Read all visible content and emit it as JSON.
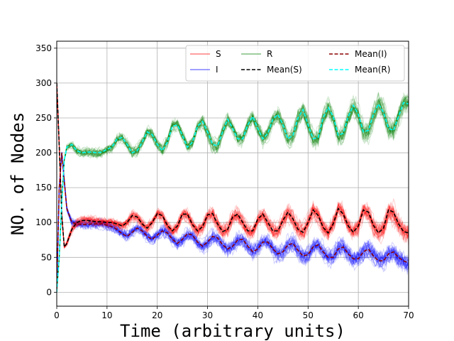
{
  "chart_data": {
    "type": "line",
    "title": "",
    "xlabel": "Time (arbitrary units)",
    "ylabel": "NO. of Nodes",
    "xlim": [
      0,
      70
    ],
    "ylim": [
      -20,
      360
    ],
    "xticks": [
      0,
      10,
      20,
      30,
      40,
      50,
      60,
      70
    ],
    "yticks": [
      0,
      50,
      100,
      150,
      200,
      250,
      300,
      350
    ],
    "grid": true,
    "legend_position": "top-right",
    "legend": [
      "S",
      "I",
      "R",
      "Mean(S)",
      "Mean(I)",
      "Mean(R)"
    ],
    "colors": {
      "S": "#ff0000",
      "I": "#0000ff",
      "R": "#008000",
      "Mean(S)": "#000000",
      "Mean(I)": "#8b0000",
      "Mean(R)": "#00ffff"
    },
    "series": [
      {
        "name": "Mean(S)",
        "style": "dashed",
        "x": [
          0,
          0.5,
          1,
          1.5,
          2,
          3,
          4,
          5,
          6,
          7,
          8,
          9,
          10,
          11,
          12,
          13,
          14,
          15,
          16,
          17,
          18,
          19,
          20,
          21,
          22,
          23,
          24,
          25,
          26,
          27,
          28,
          29,
          30,
          31,
          32,
          33,
          34,
          35,
          36,
          37,
          38,
          39,
          40,
          41,
          42,
          43,
          44,
          45,
          46,
          47,
          48,
          49,
          50,
          51,
          52,
          53,
          54,
          55,
          56,
          57,
          58,
          59,
          60,
          61,
          62,
          63,
          64,
          65,
          66,
          67,
          68,
          69,
          70
        ],
        "values": [
          300,
          210,
          110,
          65,
          70,
          90,
          100,
          103,
          103,
          102,
          101,
          101,
          100,
          100,
          98,
          95,
          100,
          110,
          108,
          98,
          92,
          100,
          113,
          110,
          96,
          88,
          95,
          112,
          112,
          97,
          88,
          94,
          111,
          113,
          98,
          87,
          90,
          108,
          112,
          100,
          88,
          88,
          105,
          112,
          100,
          88,
          88,
          103,
          115,
          105,
          90,
          86,
          100,
          118,
          110,
          93,
          85,
          98,
          120,
          112,
          95,
          86,
          95,
          118,
          115,
          96,
          85,
          92,
          118,
          115,
          98,
          87,
          85
        ]
      },
      {
        "name": "Mean(I)",
        "style": "dashed",
        "x": [
          0,
          0.5,
          1,
          1.5,
          2,
          3,
          4,
          5,
          6,
          7,
          8,
          9,
          10,
          11,
          12,
          13,
          14,
          15,
          16,
          17,
          18,
          19,
          20,
          21,
          22,
          23,
          24,
          25,
          26,
          27,
          28,
          29,
          30,
          31,
          32,
          33,
          34,
          35,
          36,
          37,
          38,
          39,
          40,
          41,
          42,
          43,
          44,
          45,
          46,
          47,
          48,
          49,
          50,
          51,
          52,
          53,
          54,
          55,
          56,
          57,
          58,
          59,
          60,
          61,
          62,
          63,
          64,
          65,
          66,
          67,
          68,
          69,
          70
        ],
        "values": [
          5,
          150,
          200,
          160,
          120,
          100,
          98,
          97,
          97,
          98,
          98,
          98,
          96,
          94,
          90,
          84,
          80,
          86,
          92,
          88,
          80,
          76,
          82,
          88,
          85,
          76,
          70,
          76,
          84,
          82,
          72,
          66,
          72,
          80,
          78,
          68,
          62,
          66,
          75,
          76,
          66,
          58,
          62,
          72,
          72,
          62,
          55,
          58,
          68,
          70,
          60,
          52,
          54,
          65,
          68,
          58,
          50,
          50,
          62,
          65,
          55,
          48,
          48,
          58,
          62,
          52,
          45,
          45,
          55,
          58,
          50,
          45,
          42
        ]
      },
      {
        "name": "Mean(R)",
        "style": "dashed",
        "x": [
          0,
          0.5,
          1,
          1.5,
          2,
          3,
          4,
          5,
          6,
          7,
          8,
          9,
          10,
          11,
          12,
          13,
          14,
          15,
          16,
          17,
          18,
          19,
          20,
          21,
          22,
          23,
          24,
          25,
          26,
          27,
          28,
          29,
          30,
          31,
          32,
          33,
          34,
          35,
          36,
          37,
          38,
          39,
          40,
          41,
          42,
          43,
          44,
          45,
          46,
          47,
          48,
          49,
          50,
          51,
          52,
          53,
          54,
          55,
          56,
          57,
          58,
          59,
          60,
          61,
          62,
          63,
          64,
          65,
          66,
          67,
          68,
          69,
          70
        ],
        "values": [
          0,
          50,
          130,
          190,
          208,
          212,
          203,
          200,
          201,
          201,
          200,
          201,
          205,
          208,
          220,
          222,
          212,
          200,
          203,
          215,
          230,
          226,
          212,
          203,
          215,
          238,
          240,
          225,
          208,
          215,
          238,
          245,
          230,
          212,
          210,
          230,
          248,
          235,
          220,
          220,
          240,
          252,
          235,
          220,
          228,
          248,
          255,
          240,
          220,
          225,
          250,
          262,
          240,
          220,
          222,
          250,
          265,
          252,
          225,
          228,
          252,
          268,
          255,
          230,
          232,
          255,
          270,
          258,
          235,
          232,
          252,
          272,
          270
        ]
      }
    ]
  }
}
